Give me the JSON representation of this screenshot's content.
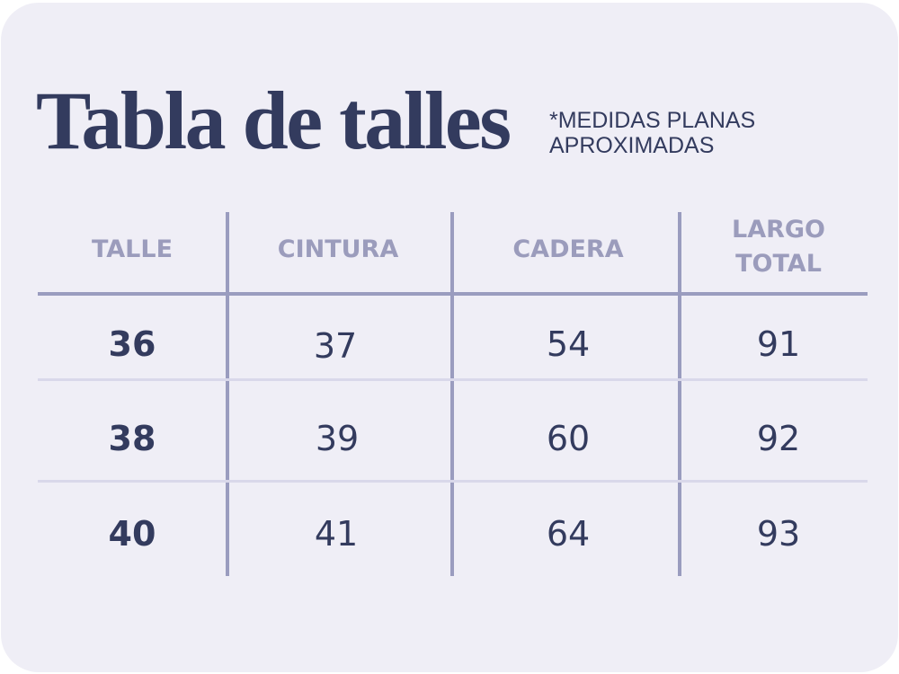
{
  "title": "Tabla de talles",
  "note": [
    "*MEDIDAS PLANAS",
    "APROXIMADAS"
  ],
  "table": {
    "headers": [
      "TALLE",
      "CINTURA",
      "CADERA",
      [
        "LARGO",
        "TOTAL"
      ]
    ],
    "rows": [
      [
        "36",
        "37",
        "54",
        "91"
      ],
      [
        "38",
        "39",
        "60",
        "92"
      ],
      [
        "40",
        "41",
        "64",
        "93"
      ]
    ]
  },
  "colors": {
    "background": "#efeef6",
    "title": "#333b5e",
    "header": "#9b9cbc",
    "lines": "#9a9cbf"
  }
}
